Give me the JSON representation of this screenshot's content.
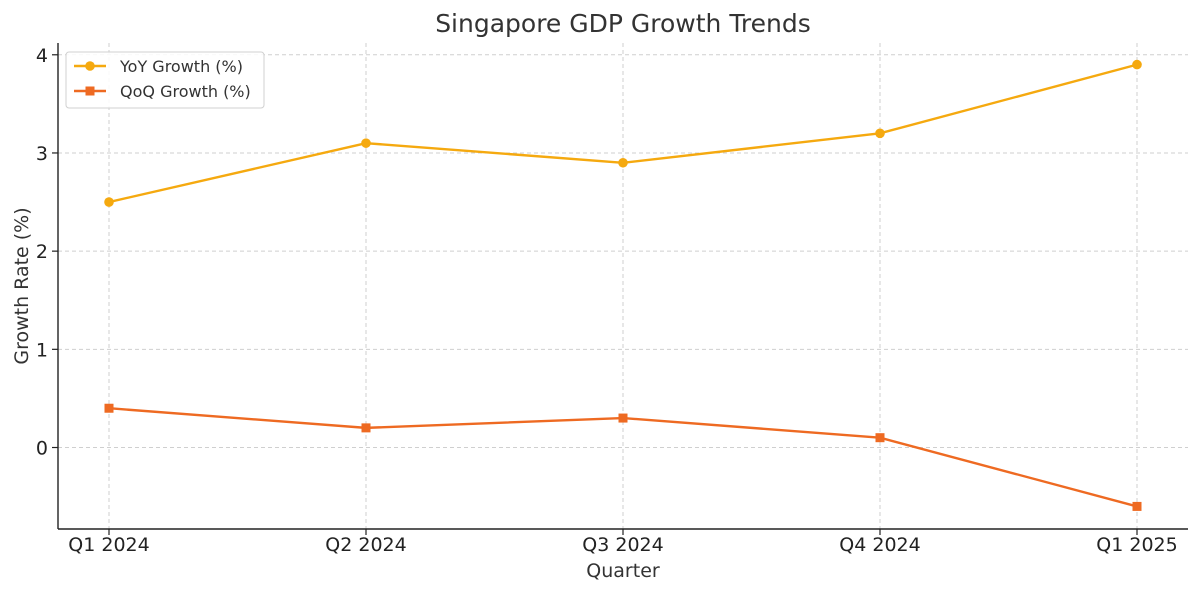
{
  "chart_data": {
    "type": "line",
    "title": "Singapore GDP Growth Trends",
    "xlabel": "Quarter",
    "ylabel": "Growth Rate (%)",
    "categories": [
      "Q1 2024",
      "Q2 2024",
      "Q3 2024",
      "Q4 2024",
      "Q1 2025"
    ],
    "ylim": [
      -0.83,
      4.12
    ],
    "yticks": [
      0,
      1,
      2,
      3,
      4
    ],
    "grid": true,
    "legend_position": "top-left",
    "series": [
      {
        "name": "YoY Growth (%)",
        "values": [
          2.5,
          3.1,
          2.9,
          3.2,
          3.9
        ],
        "color": "#F5A90F",
        "marker": "circle"
      },
      {
        "name": "QoQ Growth (%)",
        "values": [
          0.4,
          0.2,
          0.3,
          0.1,
          -0.6
        ],
        "color": "#EE6A22",
        "marker": "square"
      }
    ]
  }
}
